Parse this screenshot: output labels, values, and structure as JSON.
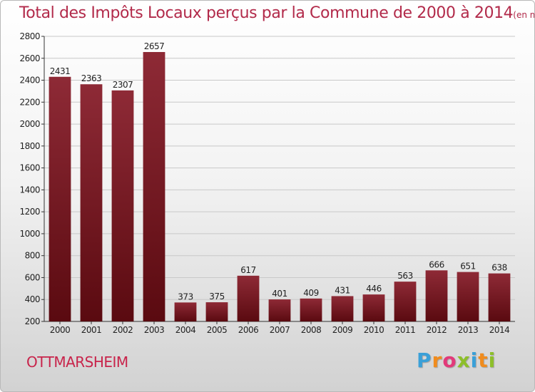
{
  "title": "Total des Impôts Locaux perçus par la Commune de 2000 à 2014",
  "title_unit": "(en milliers d'€)",
  "commune": "OTTMARSHEIM",
  "logo": {
    "text": "Proxiti",
    "letters": [
      "P",
      "r",
      "o",
      "x",
      "i",
      "t",
      "i"
    ],
    "colors": [
      "#3aa0d8",
      "#f08c1e",
      "#e23a7a",
      "#8dbf2a",
      "#3aa0d8",
      "#f08c1e",
      "#8dbf2a"
    ]
  },
  "colors": {
    "bar_top": "#8e2a36",
    "bar_bottom": "#5a0a10",
    "title": "#b22a4a",
    "grid": "#c8c8c8"
  },
  "chart_data": {
    "type": "bar",
    "categories": [
      "2000",
      "2001",
      "2002",
      "2003",
      "2004",
      "2005",
      "2006",
      "2007",
      "2008",
      "2009",
      "2010",
      "2011",
      "2012",
      "2013",
      "2014"
    ],
    "values": [
      2431,
      2363,
      2307,
      2657,
      373,
      375,
      617,
      401,
      409,
      431,
      446,
      563,
      666,
      651,
      638
    ],
    "ylim": [
      200,
      2800
    ],
    "yticks": [
      200,
      400,
      600,
      800,
      1000,
      1200,
      1400,
      1600,
      1800,
      2000,
      2200,
      2400,
      2600,
      2800
    ],
    "grid": true,
    "data_labels": true
  }
}
